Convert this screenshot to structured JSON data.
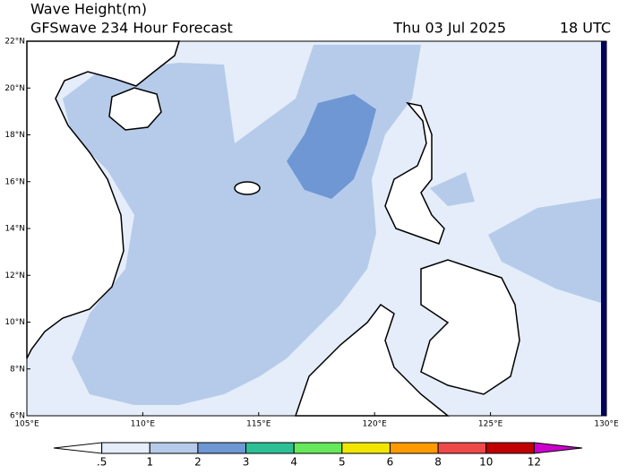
{
  "title": "Wave Height(m)",
  "subtitle": "GFSwave 234 Hour Forecast",
  "date": "Thu 03 Jul 2025",
  "time": "18 UTC",
  "map": {
    "lonlim": [
      105,
      130
    ],
    "latlim": [
      6,
      22
    ],
    "lonticks": [
      {
        "value": 105,
        "label": "105°E"
      },
      {
        "value": 110,
        "label": "110°E"
      },
      {
        "value": 115,
        "label": "115°E"
      },
      {
        "value": 120,
        "label": "120°E"
      },
      {
        "value": 125,
        "label": "125°E"
      },
      {
        "value": 130,
        "label": "130°E"
      }
    ],
    "latticks": [
      {
        "value": 6,
        "label": "6°N"
      },
      {
        "value": 8,
        "label": "8°N"
      },
      {
        "value": 10,
        "label": "10°N"
      },
      {
        "value": 12,
        "label": "12°N"
      },
      {
        "value": 14,
        "label": "14°N"
      },
      {
        "value": 16,
        "label": "16°N"
      },
      {
        "value": 18,
        "label": "18°N"
      },
      {
        "value": 20,
        "label": "20°N"
      },
      {
        "value": 22,
        "label": "22°N"
      }
    ]
  },
  "colorbar": {
    "ticks": [
      {
        "value": 0.5,
        "label": ".5"
      },
      1,
      2,
      3,
      4,
      5,
      6,
      8,
      10,
      12
    ],
    "colors": [
      "#ffffff",
      "#e4edf9",
      "#b6cbea",
      "#6e97d3",
      "#2fbf96",
      "#66e85a",
      "#f2e600",
      "#ff9a00",
      "#ee4a4a",
      "#c00000",
      "#cc00cc"
    ]
  }
}
